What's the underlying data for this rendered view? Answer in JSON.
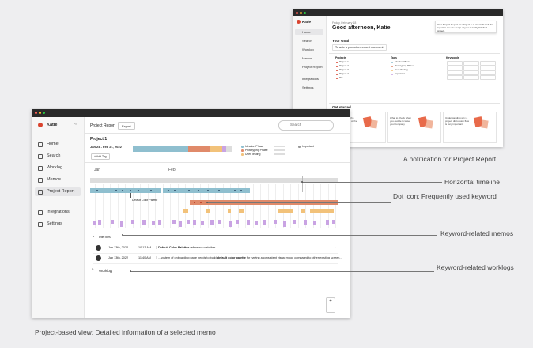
{
  "captions": {
    "notification": "A notification for Project Report",
    "timeline": "Horizontal timeline",
    "dot_icon": "Dot icon: Frequently used keyword",
    "memos": "Keyword-related memos",
    "worklogs": "Keyword-related worklogs",
    "main": "Project-based view: Detailed information of a selected memo"
  },
  "front": {
    "user": "Katie",
    "nav": [
      "Home",
      "Search",
      "Worklog",
      "Memos",
      "Project Report"
    ],
    "nav2": [
      "Integrations",
      "Settings"
    ],
    "title": "Project Report",
    "export": "Export",
    "search": "Search",
    "project": "Project 1",
    "dates": "Jan 24 - Feb 21, 2022",
    "add_tag": "+ Add Tag",
    "legend": [
      "Ideation Phase",
      "Prototyping Phase",
      "User Testing"
    ],
    "important": "Important",
    "months": [
      "Jan",
      "Feb"
    ],
    "keyword": "Default Color Palette",
    "memos_title": "Memos",
    "memos": [
      {
        "date": "Jan 13th, 2022",
        "time": "10:13 AM",
        "parts": [
          {
            "text": "Default Color Palettes",
            "bold": true
          },
          {
            "text": " reference websites",
            "bold": false
          }
        ]
      },
      {
        "date": "Jan 13th, 2022",
        "time": "11:40 AM",
        "parts": [
          {
            "text": "...system of onboarding page needs to build ",
            "bold": false
          },
          {
            "text": "default color palette",
            "bold": true
          },
          {
            "text": " for having a consistent visual mood compared to other existing screen...",
            "bold": false
          }
        ]
      }
    ],
    "worklog": "Worklog"
  },
  "back": {
    "user": "Katie",
    "nav": [
      "Home",
      "Search",
      "Worklog",
      "Memos",
      "Project Report"
    ],
    "nav2": [
      "Integrations",
      "Settings"
    ],
    "date": "Friday, February 18",
    "greeting": "Good afternoon, Katie",
    "notification": "Your Project Report for 'Project 1' is created! Visit the report to see the recap of your recently finished project.",
    "goal_title": "Your Goal",
    "goal": "To write a promotion request document",
    "projects_title": "Projects",
    "projects": [
      "Project 1",
      "Project 2",
      "Project 3",
      "Project 4",
      "P.E"
    ],
    "tags_title": "Tags",
    "tags": [
      "Ideation Phase",
      "Prototyping Phase",
      "User Testing",
      "Important"
    ],
    "keywords_title": "Keywords",
    "get_started": "Get started",
    "cards": [
      "Understanding the design process of the promotion?",
      "What to check when you decide to leave your company",
      "Understanding why a project discussion flow is very important"
    ]
  }
}
